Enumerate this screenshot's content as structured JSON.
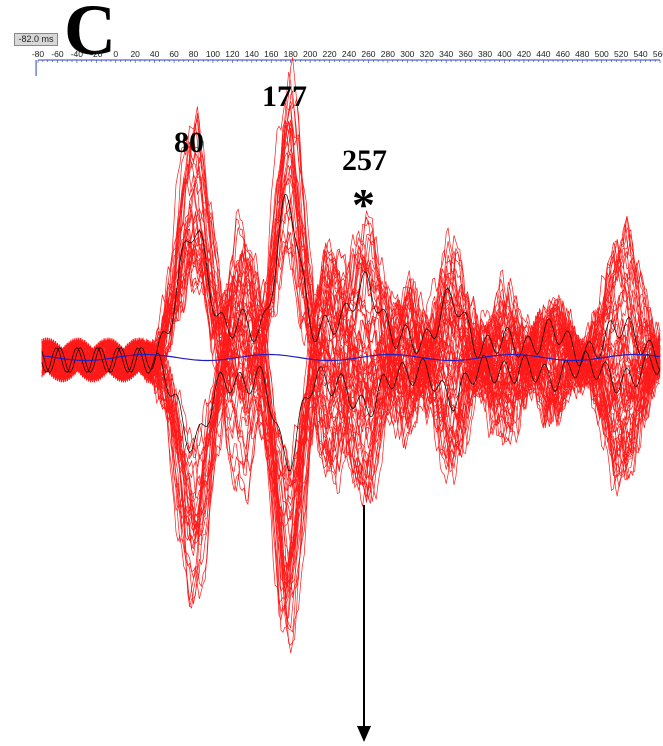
{
  "header": {
    "cursor_readout": "-82.0 ms",
    "panel_letter": "C"
  },
  "annotations": {
    "peak_labels": [
      "80",
      "177",
      "257"
    ],
    "marker": "*"
  },
  "colors": {
    "trace": "#ff1a1a",
    "reference_trace": "#000000",
    "baseline": "#1f1fbf",
    "axis": "#2b3fc8"
  },
  "chart_data": {
    "type": "line",
    "title": "",
    "xlabel": "",
    "ylabel": "",
    "x_unit": "ms",
    "x_ticks": [
      -80,
      -60,
      -40,
      -20,
      0,
      20,
      40,
      60,
      80,
      100,
      120,
      140,
      160,
      180,
      200,
      220,
      240,
      260,
      280,
      300,
      320,
      340,
      360,
      380,
      400,
      420,
      440,
      460,
      480,
      500,
      520,
      540,
      560
    ],
    "xlim": [
      -80,
      560
    ],
    "cursor_ms": -82.0,
    "ylim": [
      -1.1,
      1.1
    ],
    "grid": false,
    "legend": "none",
    "annotated_peaks_ms": [
      80,
      177,
      257
    ],
    "series_count": 64,
    "series_summary": {
      "name": "",
      "description_points_ms": [
        -80,
        0,
        20,
        40,
        80,
        130,
        177,
        220,
        257,
        300,
        340,
        400,
        450,
        520,
        560
      ]
    },
    "series": [
      {
        "x": [
          -80,
          -40,
          0,
          20,
          40,
          60,
          80,
          100,
          120,
          140,
          160,
          177,
          200,
          220,
          240,
          257,
          280,
          300,
          320,
          340,
          360,
          380,
          400,
          420,
          440,
          460,
          480,
          500,
          520,
          540,
          560
        ],
        "y": [
          0.02,
          0.01,
          0.03,
          0.1,
          0.35,
          0.7,
          0.88,
          0.55,
          -0.1,
          -0.45,
          0.3,
          0.95,
          0.4,
          -0.3,
          0.2,
          0.55,
          0.35,
          -0.1,
          0.1,
          0.4,
          0.2,
          -0.05,
          0.05,
          0.15,
          0.0,
          -0.05,
          0.25,
          0.4,
          0.2,
          0.05,
          0.0
        ]
      },
      {
        "x": [
          -80,
          -40,
          0,
          20,
          40,
          60,
          80,
          100,
          120,
          140,
          160,
          177,
          200,
          220,
          240,
          257,
          280,
          300,
          320,
          340,
          360,
          380,
          400,
          420,
          440,
          460,
          480,
          500,
          520,
          540,
          560
        ],
        "y": [
          -0.02,
          0.0,
          -0.02,
          -0.1,
          -0.35,
          -0.8,
          -0.95,
          -0.55,
          0.05,
          0.3,
          -0.6,
          -1.0,
          -0.5,
          0.1,
          -0.15,
          -0.3,
          -0.2,
          0.05,
          -0.1,
          -0.3,
          -0.15,
          0.05,
          -0.05,
          -0.15,
          0.0,
          0.05,
          -0.2,
          -0.35,
          -0.25,
          -0.05,
          0.0
        ]
      }
    ]
  }
}
